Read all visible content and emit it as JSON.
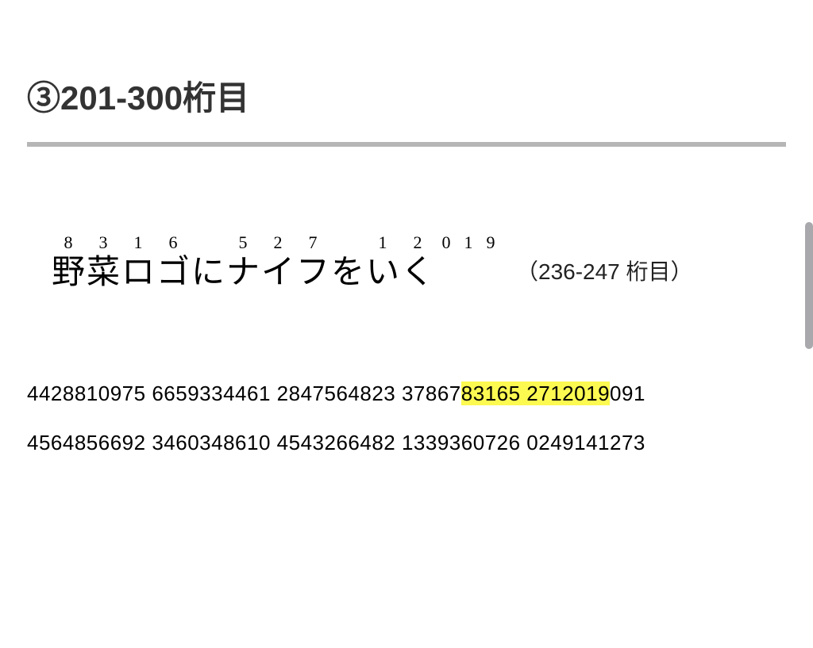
{
  "heading": "③201-300桁目",
  "mnemonic": {
    "pairs": [
      {
        "d": "8",
        "c": "野"
      },
      {
        "d": "3",
        "c": "菜"
      },
      {
        "d": "1",
        "c": "ロ"
      },
      {
        "d": "6",
        "c": "ゴ"
      },
      {
        "d": "",
        "c": "に"
      },
      {
        "d": "5",
        "c": "ナ"
      },
      {
        "d": "2",
        "c": "イ"
      },
      {
        "d": "7",
        "c": "フ"
      },
      {
        "d": "",
        "c": "を"
      },
      {
        "d": "1",
        "c": "い"
      },
      {
        "d": "2",
        "c": "く"
      },
      {
        "d": "0",
        "c": ""
      },
      {
        "d": "1",
        "c": ""
      },
      {
        "d": "9",
        "c": ""
      }
    ],
    "rangeLabel": "（236-247 桁目）"
  },
  "digitsLine1": {
    "pre": "4428810975 6659334461 2847564823 37867",
    "hi": "83165 2712019",
    "post": "091"
  },
  "digitsLine2": "4564856692 3460348610 4543266482 1339360726 0249141273",
  "colors": {
    "highlight": "#fcf951",
    "rule": "#b6b6b6",
    "text": "#000000"
  }
}
